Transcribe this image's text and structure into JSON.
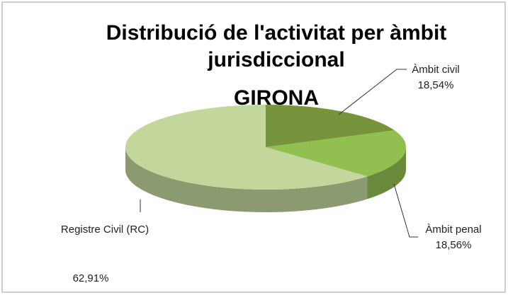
{
  "chart_data": {
    "type": "pie",
    "title": "Distribució de l'activitat per àmbit jurisdiccional",
    "subtitle": "GIRONA",
    "categories": [
      "Àmbit civil",
      "Àmbit penal",
      "Registre Civil (RC)"
    ],
    "values": [
      18.54,
      18.56,
      62.91
    ],
    "value_labels": [
      "18,54%",
      "18,56%",
      "62,91%"
    ],
    "colors": [
      "#77933c",
      "#92c050",
      "#c3d69b"
    ]
  }
}
